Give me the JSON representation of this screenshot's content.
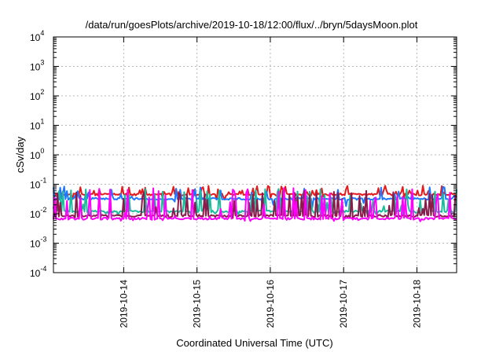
{
  "chart_data": {
    "type": "line",
    "title": "/data/run/goesPlots/archive/2019-10-18/12:00/flux/../bryn/5daysMoon.plot",
    "xlabel": "Coordinated Universal Time (UTC)",
    "ylabel": "cSv/day",
    "yscale": "log",
    "ylim": [
      0.0001,
      10000
    ],
    "y_tick_exponents": [
      -4,
      -3,
      -2,
      -1,
      0,
      1,
      2,
      3,
      4
    ],
    "y_tick_base": "10",
    "xlim": [
      "2019-10-13T01:00",
      "2019-10-18T13:00"
    ],
    "x_ticks": [
      {
        "at": "2019-10-14T00:00",
        "label": "2019-10-14"
      },
      {
        "at": "2019-10-15T00:00",
        "label": "2019-10-15"
      },
      {
        "at": "2019-10-16T00:00",
        "label": "2019-10-16"
      },
      {
        "at": "2019-10-17T00:00",
        "label": "2019-10-17"
      },
      {
        "at": "2019-10-18T00:00",
        "label": "2019-10-18"
      }
    ],
    "grid": true,
    "legend": "none",
    "series": [
      {
        "color": "#e41a1c",
        "baseline": 0.045,
        "spike_max": 0.09,
        "spike_min": 0.03,
        "seed": 11
      },
      {
        "color": "#1f77ff",
        "baseline": 0.032,
        "spike_max": 0.085,
        "spike_min": 0.012,
        "seed": 23
      },
      {
        "color": "#1abc9c",
        "baseline": 0.012,
        "spike_max": 0.07,
        "spike_min": 0.009,
        "seed": 37
      },
      {
        "color": "#8b1a4a",
        "baseline": 0.0085,
        "spike_max": 0.06,
        "spike_min": 0.0065,
        "seed": 41
      },
      {
        "color": "#ff00ff",
        "baseline": 0.0068,
        "spike_max": 0.075,
        "spike_min": 0.0055,
        "seed": 53
      }
    ]
  }
}
